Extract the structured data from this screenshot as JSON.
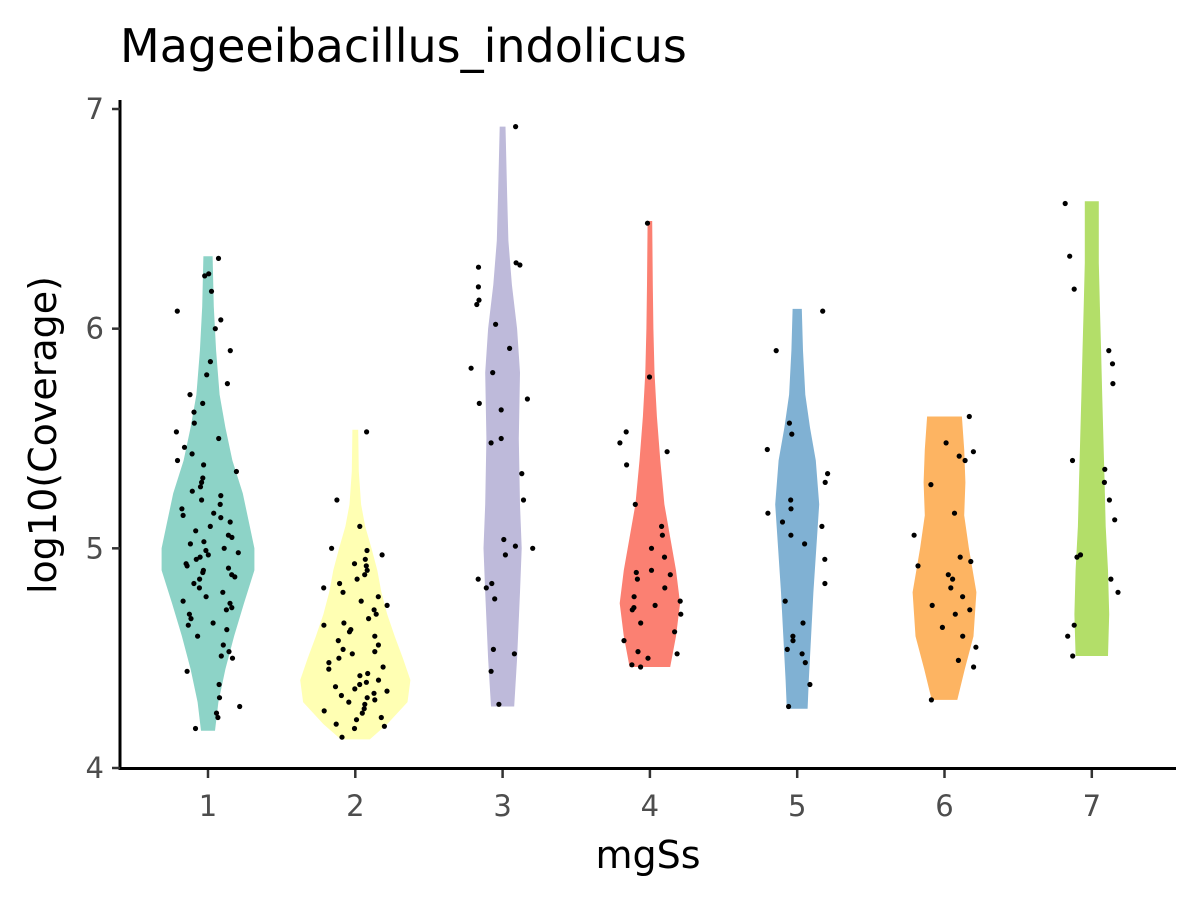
{
  "chart_data": {
    "type": "violin",
    "title": "Mageeibacillus_indolicus",
    "xlabel": "mgSs",
    "ylabel": "log10(Coverage)",
    "categories": [
      "1",
      "2",
      "3",
      "4",
      "5",
      "6",
      "7"
    ],
    "ylim": [
      4,
      7
    ],
    "yticks": [
      "4",
      "5",
      "6",
      "7"
    ],
    "grid": false,
    "legend": "none",
    "groups": [
      {
        "category": "1",
        "color": "#8DD3C7",
        "min": 4.17,
        "max": 6.33,
        "density": [
          [
            4.17,
            0.12
          ],
          [
            4.3,
            0.18
          ],
          [
            4.45,
            0.3
          ],
          [
            4.6,
            0.45
          ],
          [
            4.75,
            0.62
          ],
          [
            4.9,
            0.8
          ],
          [
            5.0,
            0.8
          ],
          [
            5.1,
            0.72
          ],
          [
            5.25,
            0.6
          ],
          [
            5.4,
            0.42
          ],
          [
            5.55,
            0.3
          ],
          [
            5.7,
            0.2
          ],
          [
            5.9,
            0.14
          ],
          [
            6.1,
            0.1
          ],
          [
            6.33,
            0.08
          ]
        ],
        "points": [
          4.23,
          4.18,
          4.25,
          4.28,
          4.32,
          4.38,
          4.44,
          4.5,
          4.51,
          4.53,
          4.56,
          4.6,
          4.63,
          4.65,
          4.66,
          4.68,
          4.7,
          4.72,
          4.73,
          4.75,
          4.76,
          4.78,
          4.8,
          4.82,
          4.84,
          4.86,
          4.87,
          4.88,
          4.89,
          4.9,
          4.91,
          4.92,
          4.93,
          4.95,
          4.96,
          4.97,
          4.98,
          4.99,
          5.0,
          5.02,
          5.03,
          5.05,
          5.06,
          5.08,
          5.1,
          5.12,
          5.14,
          5.15,
          5.16,
          5.18,
          5.2,
          5.22,
          5.24,
          5.26,
          5.28,
          5.3,
          5.32,
          5.35,
          5.38,
          5.4,
          5.43,
          5.46,
          5.5,
          5.53,
          5.57,
          5.62,
          5.66,
          5.7,
          5.75,
          5.79,
          5.85,
          5.9,
          6.0,
          6.04,
          6.08,
          6.17,
          6.24,
          6.25,
          6.32
        ]
      },
      {
        "category": "2",
        "color": "#FFFFB3",
        "min": 4.13,
        "max": 5.54,
        "density": [
          [
            4.13,
            0.25
          ],
          [
            4.2,
            0.55
          ],
          [
            4.3,
            0.9
          ],
          [
            4.4,
            0.95
          ],
          [
            4.5,
            0.82
          ],
          [
            4.6,
            0.68
          ],
          [
            4.7,
            0.55
          ],
          [
            4.8,
            0.45
          ],
          [
            4.9,
            0.38
          ],
          [
            5.0,
            0.28
          ],
          [
            5.1,
            0.17
          ],
          [
            5.2,
            0.1
          ],
          [
            5.35,
            0.06
          ],
          [
            5.54,
            0.05
          ]
        ],
        "points": [
          4.14,
          4.18,
          4.19,
          4.2,
          4.22,
          4.23,
          4.25,
          4.26,
          4.27,
          4.29,
          4.3,
          4.31,
          4.32,
          4.33,
          4.34,
          4.35,
          4.36,
          4.37,
          4.38,
          4.39,
          4.4,
          4.42,
          4.43,
          4.45,
          4.46,
          4.48,
          4.5,
          4.52,
          4.53,
          4.54,
          4.56,
          4.58,
          4.6,
          4.62,
          4.63,
          4.65,
          4.66,
          4.68,
          4.7,
          4.72,
          4.74,
          4.76,
          4.78,
          4.8,
          4.82,
          4.84,
          4.86,
          4.88,
          4.9,
          4.92,
          4.93,
          4.95,
          4.97,
          4.99,
          5.0,
          5.1,
          5.22,
          5.53
        ]
      },
      {
        "category": "3",
        "color": "#BEBADA",
        "min": 4.28,
        "max": 6.92,
        "density": [
          [
            4.28,
            0.2
          ],
          [
            4.5,
            0.25
          ],
          [
            4.8,
            0.3
          ],
          [
            5.0,
            0.33
          ],
          [
            5.2,
            0.3
          ],
          [
            5.5,
            0.28
          ],
          [
            5.8,
            0.3
          ],
          [
            6.0,
            0.25
          ],
          [
            6.2,
            0.16
          ],
          [
            6.4,
            0.1
          ],
          [
            6.6,
            0.08
          ],
          [
            6.92,
            0.05
          ]
        ],
        "points": [
          4.29,
          4.44,
          4.52,
          4.54,
          4.77,
          4.82,
          4.84,
          4.86,
          4.97,
          5.0,
          5.01,
          5.04,
          5.22,
          5.34,
          5.48,
          5.5,
          5.63,
          5.66,
          5.68,
          5.8,
          5.82,
          5.91,
          6.02,
          6.11,
          6.13,
          6.19,
          6.28,
          6.29,
          6.3,
          6.92
        ]
      },
      {
        "category": "4",
        "color": "#FB8072",
        "min": 4.46,
        "max": 6.49,
        "density": [
          [
            4.46,
            0.35
          ],
          [
            4.6,
            0.45
          ],
          [
            4.75,
            0.52
          ],
          [
            4.9,
            0.45
          ],
          [
            5.05,
            0.35
          ],
          [
            5.2,
            0.25
          ],
          [
            5.4,
            0.18
          ],
          [
            5.6,
            0.12
          ],
          [
            5.8,
            0.08
          ],
          [
            6.0,
            0.06
          ],
          [
            6.2,
            0.05
          ],
          [
            6.49,
            0.04
          ]
        ],
        "points": [
          4.46,
          4.47,
          4.5,
          4.52,
          4.53,
          4.58,
          4.62,
          4.66,
          4.7,
          4.72,
          4.73,
          4.74,
          4.76,
          4.78,
          4.82,
          4.86,
          4.88,
          4.89,
          4.9,
          4.96,
          5.0,
          5.06,
          5.1,
          5.2,
          5.38,
          5.44,
          5.48,
          5.53,
          5.78,
          6.48
        ]
      },
      {
        "category": "5",
        "color": "#80B1D3",
        "min": 4.27,
        "max": 6.09,
        "density": [
          [
            4.27,
            0.18
          ],
          [
            4.4,
            0.2
          ],
          [
            4.6,
            0.24
          ],
          [
            4.8,
            0.28
          ],
          [
            5.0,
            0.33
          ],
          [
            5.2,
            0.38
          ],
          [
            5.4,
            0.32
          ],
          [
            5.55,
            0.22
          ],
          [
            5.7,
            0.14
          ],
          [
            5.9,
            0.1
          ],
          [
            6.09,
            0.08
          ]
        ],
        "points": [
          4.28,
          4.38,
          4.48,
          4.52,
          4.54,
          4.58,
          4.6,
          4.66,
          4.76,
          4.84,
          4.95,
          5.02,
          5.06,
          5.1,
          5.12,
          5.16,
          5.18,
          5.22,
          5.3,
          5.34,
          5.45,
          5.52,
          5.57,
          5.9,
          6.08
        ]
      },
      {
        "category": "6",
        "color": "#FDB462",
        "min": 4.31,
        "max": 5.6,
        "density": [
          [
            4.31,
            0.22
          ],
          [
            4.45,
            0.35
          ],
          [
            4.6,
            0.5
          ],
          [
            4.8,
            0.55
          ],
          [
            5.0,
            0.42
          ],
          [
            5.15,
            0.34
          ],
          [
            5.3,
            0.36
          ],
          [
            5.45,
            0.34
          ],
          [
            5.6,
            0.3
          ]
        ],
        "points": [
          4.31,
          4.46,
          4.49,
          4.55,
          4.6,
          4.64,
          4.7,
          4.72,
          4.74,
          4.78,
          4.82,
          4.86,
          4.88,
          4.92,
          4.94,
          4.96,
          5.06,
          5.16,
          5.29,
          5.4,
          5.42,
          5.44,
          5.48,
          5.6
        ]
      },
      {
        "category": "7",
        "color": "#B3DE69",
        "min": 4.51,
        "max": 6.58,
        "density": [
          [
            4.51,
            0.28
          ],
          [
            4.7,
            0.3
          ],
          [
            4.9,
            0.28
          ],
          [
            5.1,
            0.24
          ],
          [
            5.3,
            0.22
          ],
          [
            5.5,
            0.2
          ],
          [
            5.7,
            0.18
          ],
          [
            5.9,
            0.16
          ],
          [
            6.1,
            0.14
          ],
          [
            6.3,
            0.12
          ],
          [
            6.58,
            0.12
          ]
        ],
        "points": [
          4.51,
          4.6,
          4.65,
          4.8,
          4.86,
          4.96,
          4.97,
          5.13,
          5.22,
          5.3,
          5.36,
          5.4,
          5.75,
          5.84,
          5.9,
          6.18,
          6.33,
          6.57
        ]
      }
    ]
  }
}
